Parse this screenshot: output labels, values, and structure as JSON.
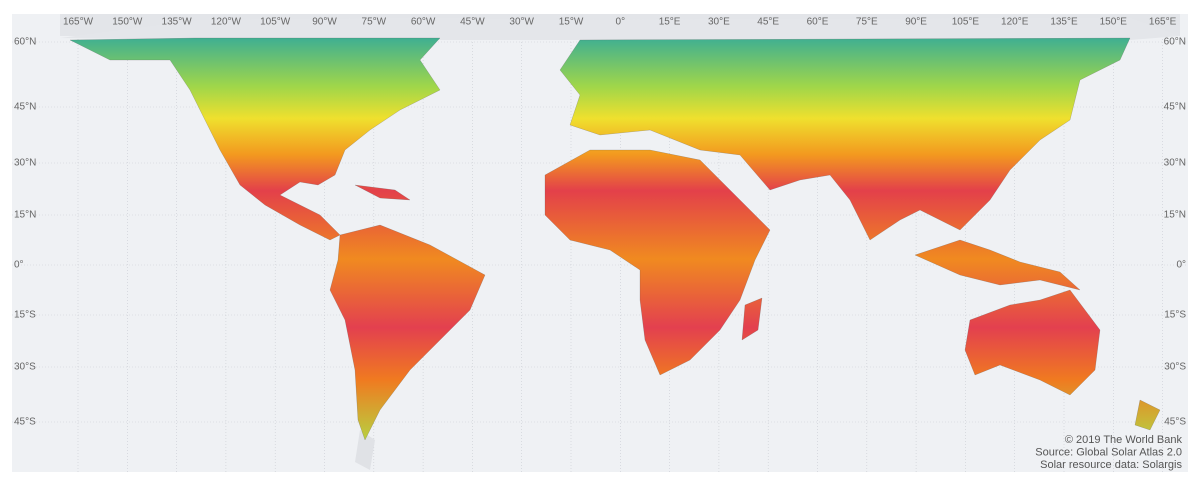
{
  "longitude_labels": [
    "165°W",
    "150°W",
    "135°W",
    "120°W",
    "105°W",
    "90°W",
    "75°W",
    "60°W",
    "45°W",
    "30°W",
    "15°W",
    "0°",
    "15°E",
    "30°E",
    "45°E",
    "60°E",
    "75°E",
    "90°E",
    "105°E",
    "120°E",
    "135°E",
    "150°E",
    "165°E"
  ],
  "latitude_labels": [
    "60°N",
    "45°N",
    "30°N",
    "15°N",
    "0°",
    "15°S",
    "30°S",
    "45°S"
  ],
  "attribution": [
    "© 2019 The World Bank",
    "Source: Global Solar Atlas 2.0",
    "Solar resource data: Solargis"
  ]
}
